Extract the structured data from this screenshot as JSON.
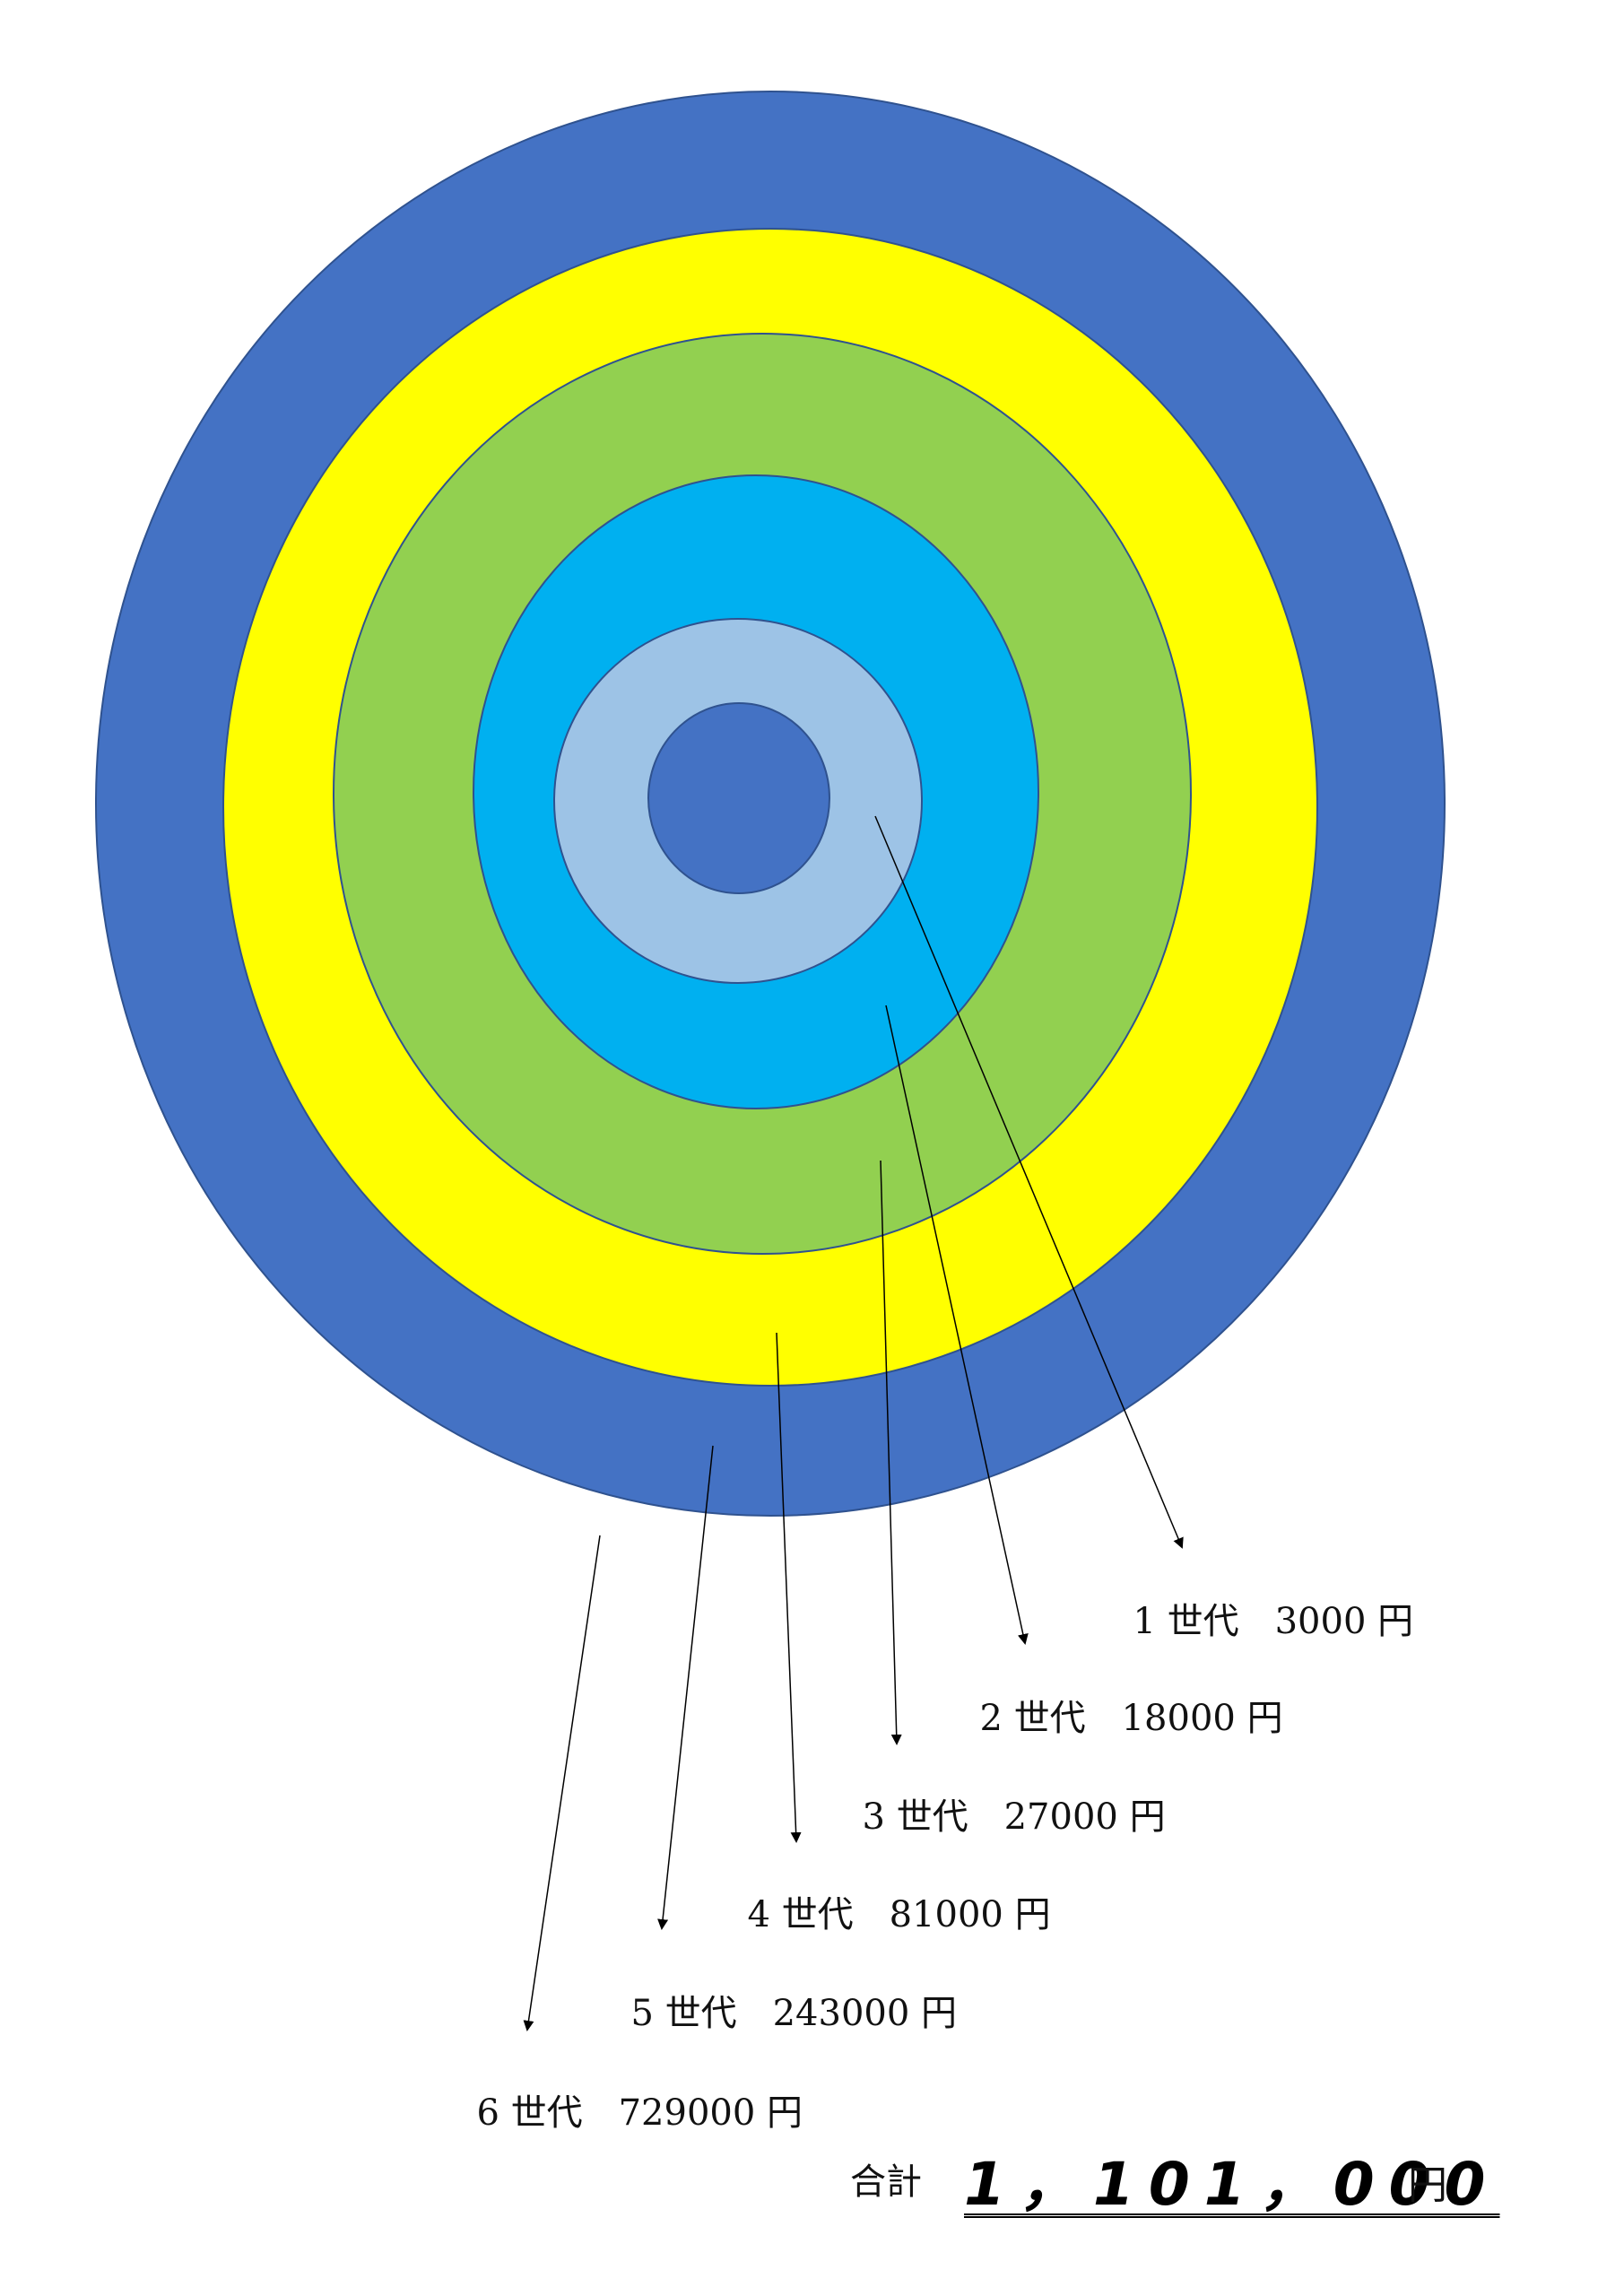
{
  "rings": [
    {
      "name": "ring-6",
      "color": "#4472c4"
    },
    {
      "name": "ring-5",
      "color": "#ffff00"
    },
    {
      "name": "ring-4",
      "color": "#92d050"
    },
    {
      "name": "ring-3",
      "color": "#00b0f0"
    },
    {
      "name": "ring-2",
      "color": "#9dc3e6"
    },
    {
      "name": "ring-1",
      "color": "#4472c4"
    }
  ],
  "generations": [
    {
      "num": "1",
      "label": "世代",
      "amount": "3000",
      "unit": "円"
    },
    {
      "num": "2",
      "label": "世代",
      "amount": "18000",
      "unit": "円"
    },
    {
      "num": "3",
      "label": "世代",
      "amount": "27000",
      "unit": "円"
    },
    {
      "num": "4",
      "label": "世代",
      "amount": "81000",
      "unit": "円"
    },
    {
      "num": "5",
      "label": "世代",
      "amount": "243000",
      "unit": "円"
    },
    {
      "num": "6",
      "label": "世代",
      "amount": "729000",
      "unit": "円"
    }
  ],
  "total": {
    "label": "合計",
    "value": "1，101，000",
    "unit": "円"
  }
}
